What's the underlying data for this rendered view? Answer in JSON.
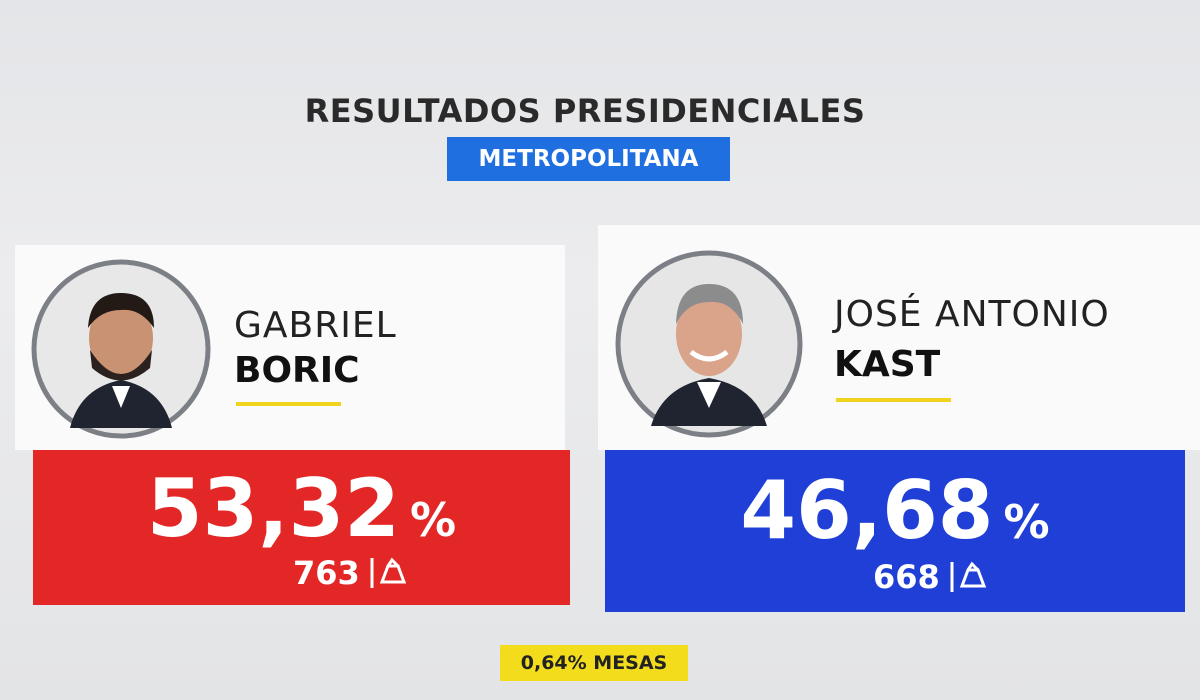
{
  "header": {
    "title": "RESULTADOS PRESIDENCIALES",
    "region": "METROPOLITANA"
  },
  "candidates": [
    {
      "first_name": "GABRIEL",
      "last_name": "BORIC",
      "percent": "53,32",
      "percent_sign": "%",
      "votes": "763"
    },
    {
      "first_name": "JOSÉ ANTONIO",
      "last_name": "KAST",
      "percent": "46,68",
      "percent_sign": "%",
      "votes": "668"
    }
  ],
  "footer": {
    "progress": "0,64% MESAS"
  }
}
